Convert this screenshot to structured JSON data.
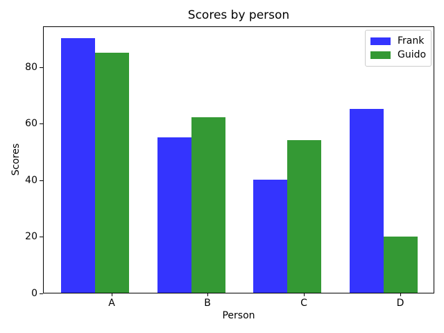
{
  "chart_data": {
    "type": "bar",
    "title": "Scores by person",
    "xlabel": "Person",
    "ylabel": "Scores",
    "categories": [
      "A",
      "B",
      "C",
      "D"
    ],
    "series": [
      {
        "name": "Frank",
        "color": "#3434fe",
        "values": [
          90,
          55,
          40,
          65
        ]
      },
      {
        "name": "Guido",
        "color": "#349934",
        "values": [
          85,
          62,
          54,
          20
        ]
      }
    ],
    "yticks": [
      0,
      20,
      40,
      60,
      80
    ],
    "ylim": [
      0,
      94.5
    ],
    "legend_position": "upper right",
    "grid": false
  }
}
